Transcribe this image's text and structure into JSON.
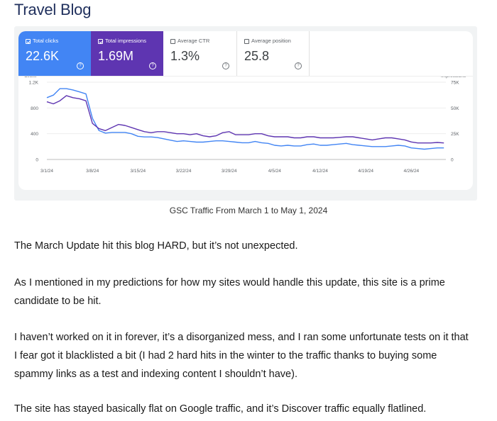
{
  "page": {
    "title": "Travel Blog"
  },
  "gsc": {
    "tiles": [
      {
        "label": "Total clicks",
        "value": "22.6K",
        "checked": true,
        "help": "?"
      },
      {
        "label": "Total impressions",
        "value": "1.69M",
        "checked": true,
        "help": "?"
      },
      {
        "label": "Average CTR",
        "value": "1.3%",
        "checked": false,
        "help": "?"
      },
      {
        "label": "Average position",
        "value": "25.8",
        "checked": false,
        "help": "?"
      }
    ],
    "colors": {
      "clicks": "#4285f4",
      "impressions": "#5e35b1"
    }
  },
  "chart_data": {
    "type": "line",
    "left_axis_label": "Clicks",
    "right_axis_label": "Impressions",
    "left_ticks": [
      "1.2K",
      "800",
      "400",
      "0"
    ],
    "right_ticks": [
      "75K",
      "50K",
      "25K",
      "0"
    ],
    "left_ylim": [
      0,
      1200
    ],
    "right_ylim": [
      0,
      75000
    ],
    "x_ticks": [
      "3/1/24",
      "3/8/24",
      "3/15/24",
      "3/22/24",
      "3/29/24",
      "4/5/24",
      "4/12/24",
      "4/19/24",
      "4/26/24"
    ],
    "x_start": "2024-03-01",
    "x_end": "2024-04-30",
    "series": [
      {
        "name": "Total clicks",
        "axis": "left",
        "color": "#4285f4",
        "values": [
          960,
          1000,
          1100,
          1100,
          1080,
          1050,
          1020,
          640,
          450,
          410,
          420,
          420,
          420,
          400,
          360,
          350,
          350,
          340,
          320,
          300,
          280,
          290,
          280,
          270,
          270,
          280,
          290,
          290,
          280,
          270,
          260,
          260,
          280,
          260,
          250,
          220,
          210,
          220,
          210,
          210,
          230,
          240,
          220,
          220,
          230,
          240,
          250,
          230,
          220,
          210,
          200,
          200,
          200,
          210,
          220,
          210,
          180,
          170,
          160,
          170,
          180,
          180
        ]
      },
      {
        "name": "Total impressions",
        "axis": "right",
        "color": "#5e35b1",
        "values": [
          56000,
          54000,
          57000,
          62000,
          60000,
          59000,
          57000,
          35000,
          30000,
          28000,
          31000,
          34000,
          33000,
          31000,
          29000,
          27000,
          26000,
          27000,
          27000,
          26000,
          25000,
          25000,
          24000,
          25000,
          23000,
          22000,
          23000,
          26000,
          27000,
          24000,
          24000,
          24000,
          25000,
          25000,
          23000,
          22000,
          22000,
          22000,
          21000,
          21000,
          22000,
          22000,
          21000,
          21000,
          21000,
          21500,
          22000,
          22000,
          21000,
          20000,
          19000,
          20000,
          21000,
          21000,
          20000,
          19000,
          17000,
          16000,
          16000,
          16000,
          16500,
          16000
        ]
      }
    ]
  },
  "caption": "GSC Traffic From March 1 to May 1, 2024",
  "paragraphs": [
    "The March Update hit this blog HARD, but it’s not unexpected.",
    "As I mentioned in my predictions for how my sites would handle this update, this site is a prime candidate to be hit.",
    "I haven’t worked on it in forever, it’s a disorganized mess, and I ran some unfortunate tests on it that I fear got it blacklisted a bit (I had 2 hard hits in the winter to the traffic thanks to buying some spammy links as a test and indexing content I shouldn’t have).",
    "The site has stayed basically flat on Google traffic, and it’s Discover traffic equally flatlined."
  ]
}
